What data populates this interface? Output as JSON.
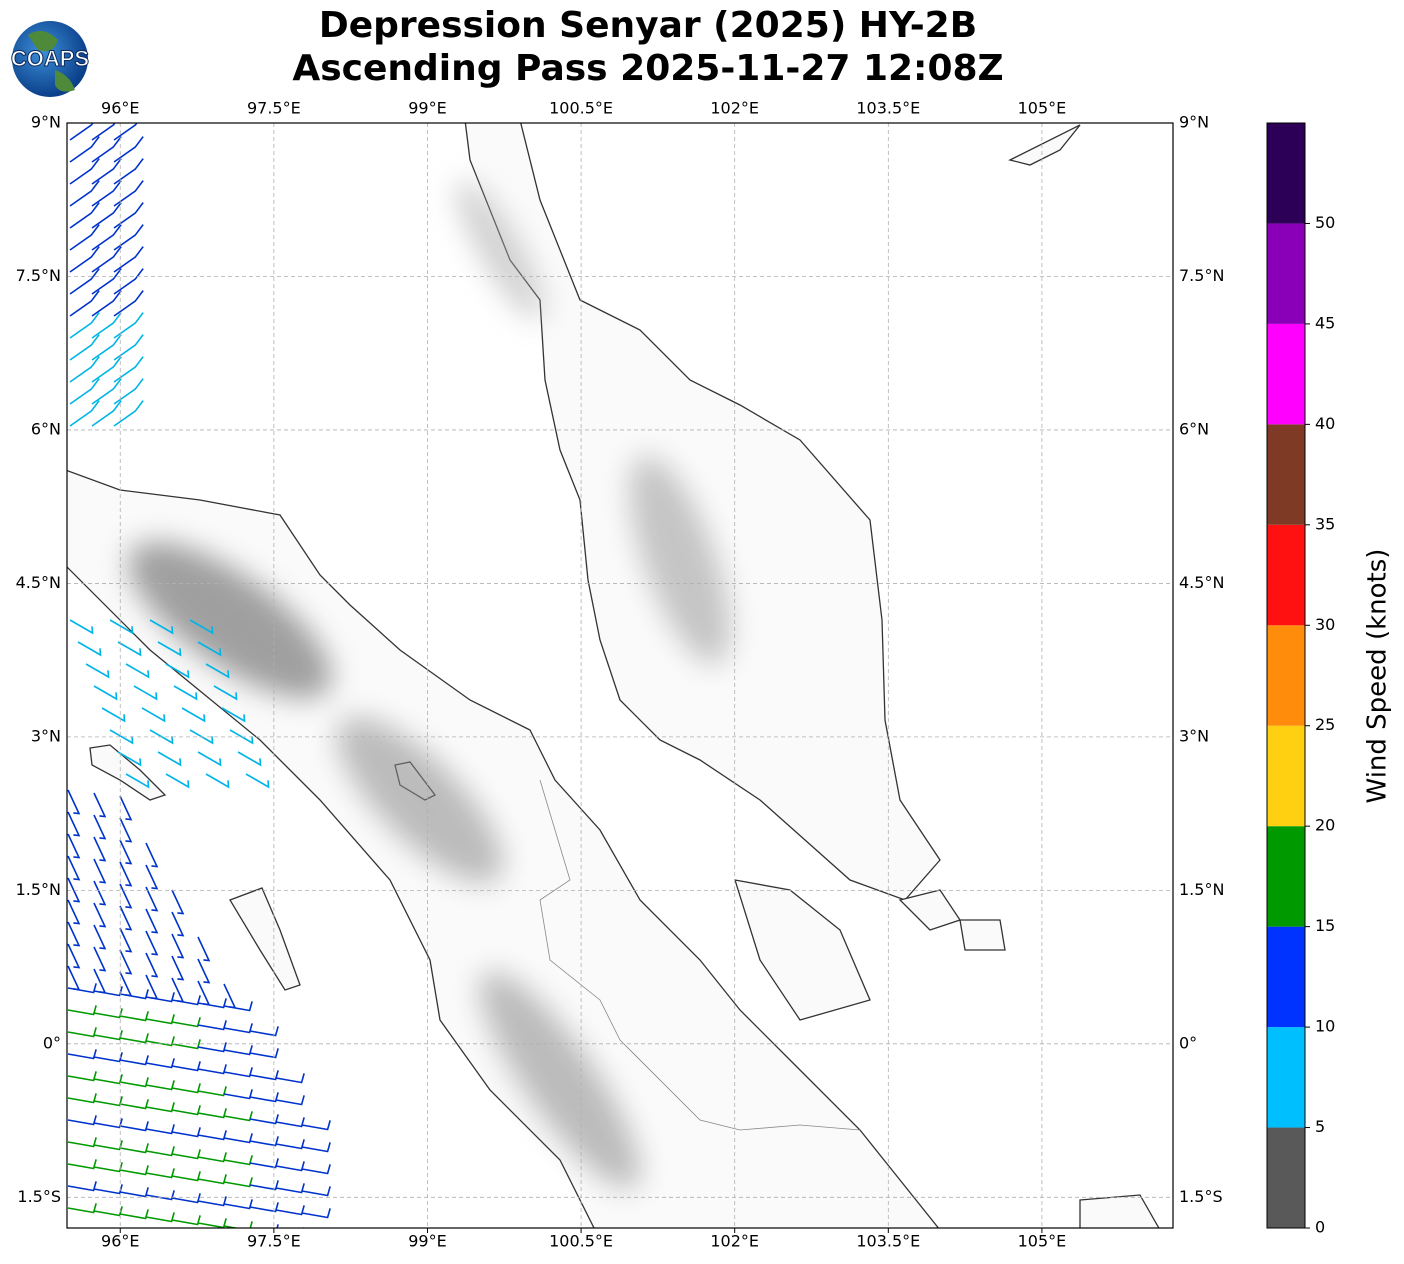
{
  "header": {
    "title_line1": "Depression Senyar (2025) HY-2B",
    "title_line2": "Ascending Pass 2025-11-27 12:08Z"
  },
  "logo": {
    "text": "COAPS"
  },
  "map": {
    "xlim": [
      95.48,
      106.28
    ],
    "ylim": [
      -1.8,
      9
    ],
    "xticks": [
      {
        "value": 96,
        "label": "96°E"
      },
      {
        "value": 97.5,
        "label": "97.5°E"
      },
      {
        "value": 99,
        "label": "99°E"
      },
      {
        "value": 100.5,
        "label": "100.5°E"
      },
      {
        "value": 102,
        "label": "102°E"
      },
      {
        "value": 103.5,
        "label": "103.5°E"
      },
      {
        "value": 105,
        "label": "105°E"
      }
    ],
    "yticks": [
      {
        "value": 9,
        "label": "9°N"
      },
      {
        "value": 7.5,
        "label": "7.5°N"
      },
      {
        "value": 6,
        "label": "6°N"
      },
      {
        "value": 4.5,
        "label": "4.5°N"
      },
      {
        "value": 3,
        "label": "3°N"
      },
      {
        "value": 1.5,
        "label": "1.5°N"
      },
      {
        "value": 0,
        "label": "0°"
      },
      {
        "value": -1.5,
        "label": "1.5°S"
      }
    ],
    "grid": true
  },
  "colorbar": {
    "label": "Wind Speed (knots)",
    "lim": [
      0,
      55
    ],
    "bounds": [
      0,
      5,
      10,
      15,
      20,
      25,
      30,
      35,
      40,
      45,
      50,
      55
    ],
    "colors": [
      "#595959",
      "#00bfff",
      "#0033ff",
      "#009900",
      "#ffd011",
      "#ff8c0b",
      "#ff1111",
      "#7f3a25",
      "#ff00ff",
      "#8a00b8",
      "#2d0058"
    ],
    "ticks": [
      0,
      5,
      10,
      15,
      20,
      25,
      30,
      35,
      40,
      45,
      50
    ]
  }
}
